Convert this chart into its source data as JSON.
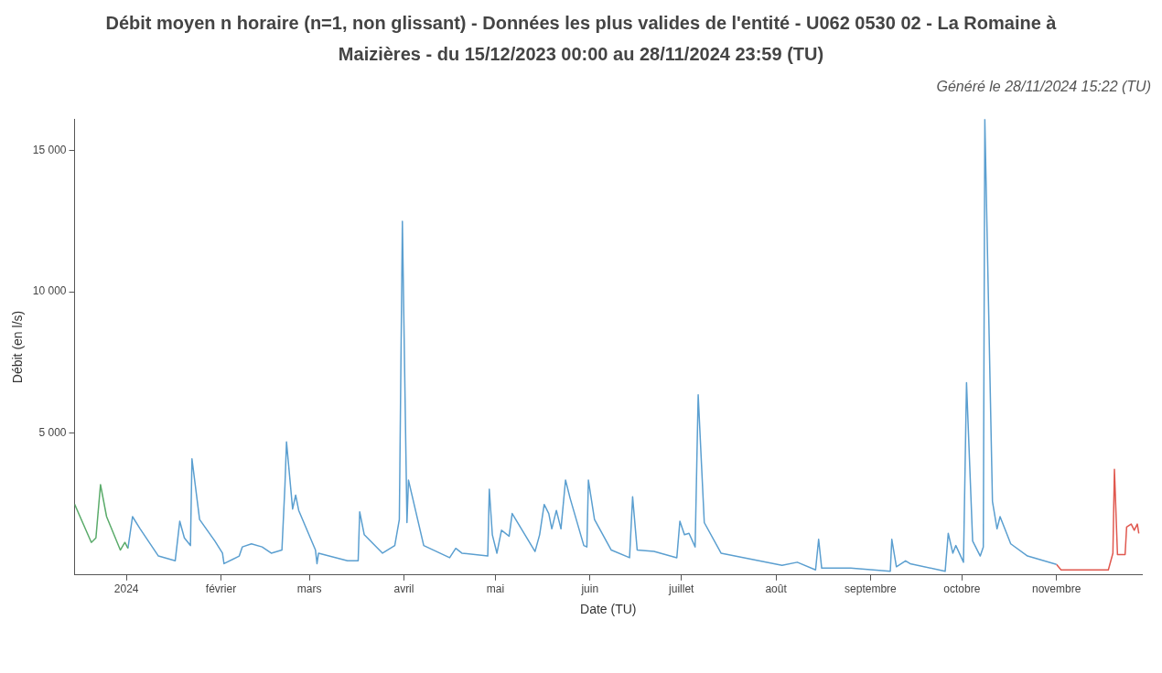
{
  "chart_data": {
    "type": "line",
    "title": "Débit moyen n horaire (n=1, non glissant) - Données les plus valides de l'entité - U062 0530 02 - La Romaine à Maizières - du 15/12/2023 00:00 au 28/11/2024 23:59 (TU)",
    "subtitle": "Généré le 28/11/2024 15:22 (TU)",
    "xlabel": "Date (TU)",
    "ylabel": "Débit (en l/s)",
    "grid": false,
    "legend": false,
    "marker": "none",
    "xlim": [
      "2023-12-15T00:00",
      "2024-11-28T23:59"
    ],
    "xticks": [
      {
        "value": "2024-01-01",
        "label": "2024"
      },
      {
        "value": "2024-02-01",
        "label": "février"
      },
      {
        "value": "2024-03-01",
        "label": "mars"
      },
      {
        "value": "2024-04-01",
        "label": "avril"
      },
      {
        "value": "2024-05-01",
        "label": "mai"
      },
      {
        "value": "2024-06-01",
        "label": "juin"
      },
      {
        "value": "2024-07-01",
        "label": "juillet"
      },
      {
        "value": "2024-08-01",
        "label": "août"
      },
      {
        "value": "2024-09-01",
        "label": "septembre"
      },
      {
        "value": "2024-10-01",
        "label": "octobre"
      },
      {
        "value": "2024-11-01",
        "label": "novembre"
      }
    ],
    "ylim": [
      0,
      16100
    ],
    "yticks": [
      {
        "value": 5000,
        "label": "5 000"
      },
      {
        "value": 10000,
        "label": "10 000"
      },
      {
        "value": 15000,
        "label": "15 000"
      }
    ],
    "series": [
      {
        "color": "#5aab6a",
        "x": [
          "2023-12-15T00:00",
          "2023-12-20T12:00",
          "2023-12-22T00:00",
          "2023-12-23T12:00",
          "2023-12-25T12:00",
          "2023-12-30T00:00",
          "2023-12-31T12:00",
          "2024-01-01T12:00"
        ],
        "values": [
          2500,
          1150,
          1310,
          3190,
          2060,
          880,
          1150,
          940
        ]
      },
      {
        "color": "#5b9fd0",
        "x": [
          "2024-01-01T12:00",
          "2024-01-03T00:00",
          "2024-01-05T12:00",
          "2024-01-11T12:00",
          "2024-01-17T00:00",
          "2024-01-18T12:00",
          "2024-01-20T00:00",
          "2024-01-22T00:00",
          "2024-01-22T12:00",
          "2024-01-25T00:00",
          "2024-01-30T00:00",
          "2024-02-01T12:00",
          "2024-02-02T00:00",
          "2024-02-07T00:00",
          "2024-02-08T00:00",
          "2024-02-11T00:00",
          "2024-02-14T12:00",
          "2024-02-17T12:00",
          "2024-02-21T00:00",
          "2024-02-22T00:00",
          "2024-02-22T12:00",
          "2024-02-24T12:00",
          "2024-02-25T12:00",
          "2024-02-26T12:00",
          "2024-03-03T00:00",
          "2024-03-03T12:00",
          "2024-03-04T00:00",
          "2024-03-13T12:00",
          "2024-03-17T00:00",
          "2024-03-17T12:00",
          "2024-03-19T00:00",
          "2024-03-25T00:00",
          "2024-03-29T00:00",
          "2024-03-30T12:00",
          "2024-03-31T12:00",
          "2024-04-02T00:00",
          "2024-04-02T12:00",
          "2024-04-07T12:00",
          "2024-04-16T00:00",
          "2024-04-18T00:00",
          "2024-04-20T00:00",
          "2024-04-28T12:00",
          "2024-04-29T00:00",
          "2024-04-30T00:00",
          "2024-05-01T12:00",
          "2024-05-03T00:00",
          "2024-05-05T12:00",
          "2024-05-06T12:00",
          "2024-05-14T00:00",
          "2024-05-15T12:00",
          "2024-05-17T00:00",
          "2024-05-18T12:00",
          "2024-05-19T12:00",
          "2024-05-21T00:00",
          "2024-05-22T12:00",
          "2024-05-24T00:00",
          "2024-05-25T12:00",
          "2024-05-30T00:00",
          "2024-05-31T00:00",
          "2024-05-31T12:00",
          "2024-06-02T12:00",
          "2024-06-08T00:00",
          "2024-06-14T00:00",
          "2024-06-15T00:00",
          "2024-06-16T12:00",
          "2024-06-22T00:00",
          "2024-06-29T12:00",
          "2024-06-30T12:00",
          "2024-07-02T00:00",
          "2024-07-03T12:00",
          "2024-07-05T12:00",
          "2024-07-06T12:00",
          "2024-07-08T12:00",
          "2024-07-14T00:00",
          "2024-08-03T00:00",
          "2024-08-08T00:00",
          "2024-08-14T00:00",
          "2024-08-15T00:00",
          "2024-08-16T00:00",
          "2024-08-25T12:00",
          "2024-09-07T12:00",
          "2024-09-08T00:00",
          "2024-09-09T12:00",
          "2024-09-12T12:00",
          "2024-09-14T00:00",
          "2024-09-25T12:00",
          "2024-09-26T12:00",
          "2024-09-28T00:00",
          "2024-09-29T00:00",
          "2024-10-01T12:00",
          "2024-10-02T12:00",
          "2024-10-04T12:00",
          "2024-10-07T00:00",
          "2024-10-08T00:00",
          "2024-10-08T12:00",
          "2024-10-11T00:00",
          "2024-10-12T12:00",
          "2024-10-13T12:00",
          "2024-10-17T00:00",
          "2024-10-22T12:00",
          "2024-11-01T00:00"
        ],
        "values": [
          940,
          2060,
          1630,
          670,
          500,
          1900,
          1310,
          1040,
          4100,
          1960,
          1200,
          770,
          400,
          670,
          990,
          1100,
          990,
          770,
          880,
          3190,
          4700,
          2330,
          2820,
          2280,
          880,
          400,
          770,
          500,
          500,
          2230,
          1420,
          770,
          1040,
          1960,
          12490,
          1850,
          3350,
          1040,
          610,
          940,
          770,
          670,
          3030,
          1420,
          770,
          1580,
          1370,
          2170,
          830,
          1420,
          2490,
          2170,
          1630,
          2280,
          1630,
          3350,
          2710,
          1040,
          990,
          3350,
          1960,
          880,
          610,
          2760,
          880,
          830,
          610,
          1900,
          1420,
          1470,
          990,
          6360,
          1850,
          770,
          340,
          450,
          180,
          1260,
          240,
          240,
          130,
          1260,
          290,
          500,
          400,
          130,
          1470,
          770,
          1040,
          450,
          6790,
          1200,
          670,
          990,
          16090,
          2600,
          1630,
          2060,
          1100,
          670,
          370
        ]
      },
      {
        "color": "#e0584f",
        "x": [
          "2024-11-01T00:00",
          "2024-11-02T12:00",
          "2024-11-18T00:00",
          "2024-11-19T12:00",
          "2024-11-20T00:00",
          "2024-11-21T00:00",
          "2024-11-23T12:00",
          "2024-11-24T00:00",
          "2024-11-25T12:00",
          "2024-11-26T12:00",
          "2024-11-27T12:00",
          "2024-11-28T00:00"
        ],
        "values": [
          370,
          180,
          180,
          770,
          3730,
          720,
          720,
          1690,
          1800,
          1580,
          1800,
          1470
        ]
      }
    ]
  }
}
